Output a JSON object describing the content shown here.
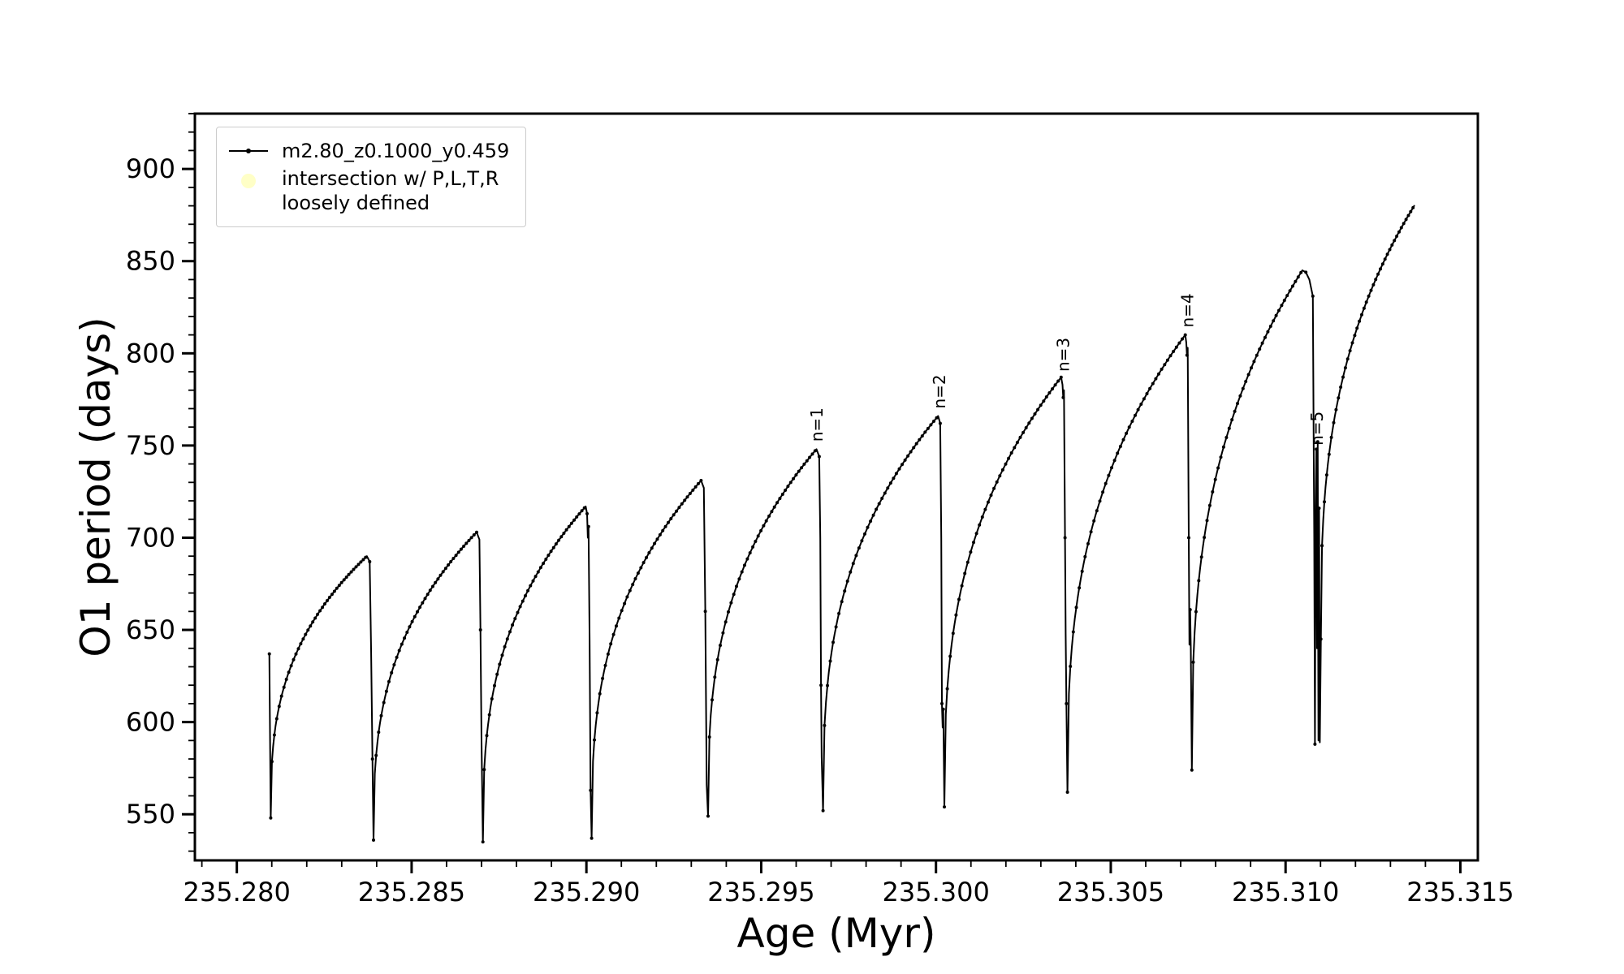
{
  "chart_data": {
    "type": "line",
    "title": "",
    "xlabel": "Age (Myr)",
    "ylabel": "O1 period (days)",
    "xlim": [
      235.2788,
      235.3155
    ],
    "ylim": [
      525,
      930
    ],
    "xticks": [
      235.28,
      235.285,
      235.29,
      235.295,
      235.3,
      235.305,
      235.31,
      235.315
    ],
    "xtick_labels": [
      "235.280",
      "235.285",
      "235.290",
      "235.295",
      "235.300",
      "235.305",
      "235.310",
      "235.315"
    ],
    "yticks": [
      550,
      600,
      650,
      700,
      750,
      800,
      850,
      900
    ],
    "ytick_labels": [
      "550",
      "600",
      "650",
      "700",
      "750",
      "800",
      "850",
      "900"
    ],
    "x_minor_step": 0.001,
    "y_minor_step": 10,
    "grid": false,
    "legend_position": "upper left",
    "legend": [
      {
        "label": "m2.80_z0.1000_y0.459",
        "marker": "line-dot",
        "color": "#000000"
      },
      {
        "label": "intersection w/ P,L,T,R\nloosely defined",
        "marker": "circle",
        "color": "#ffff99"
      }
    ],
    "annotations": [
      {
        "text": "n=1",
        "x": 235.29676,
        "y": 752,
        "rotation": 90
      },
      {
        "text": "n=2",
        "x": 235.30026,
        "y": 770,
        "rotation": 90
      },
      {
        "text": "n=3",
        "x": 235.3038,
        "y": 790,
        "rotation": 90
      },
      {
        "text": "n=4",
        "x": 235.30736,
        "y": 814,
        "rotation": 90
      },
      {
        "text": "n=5",
        "x": 235.31106,
        "y": 750,
        "rotation": 90
      }
    ],
    "series": {
      "name": "m2.80_z0.1000_y0.459",
      "color": "#000000",
      "style": "line with small dot markers",
      "pre_spike": [
        [
          235.28093,
          637
        ],
        [
          235.28095,
          590
        ],
        [
          235.28097,
          548
        ]
      ],
      "cycles": [
        {
          "x0": 235.28097,
          "y0": 548,
          "xp": 235.28372,
          "yp": 690,
          "shape": 0.35,
          "drop": [
            [
              235.2838,
              687
            ],
            [
              235.28384,
              640
            ],
            [
              235.28388,
              580
            ],
            [
              235.28391,
              536
            ]
          ]
        },
        {
          "x0": 235.28391,
          "y0": 536,
          "xp": 235.28686,
          "yp": 703,
          "shape": 0.35,
          "drop": [
            [
              235.28694,
              699
            ],
            [
              235.28697,
              650
            ],
            [
              235.287,
              590
            ],
            [
              235.28704,
              535
            ]
          ]
        },
        {
          "x0": 235.28704,
          "y0": 535,
          "xp": 235.28998,
          "yp": 717,
          "shape": 0.35,
          "drop": [
            [
              235.29002,
              713
            ],
            [
              235.29004,
              700
            ],
            [
              235.29006,
              706
            ],
            [
              235.29009,
              645
            ],
            [
              235.29012,
              563
            ],
            [
              235.29015,
              537
            ]
          ]
        },
        {
          "x0": 235.29015,
          "y0": 537,
          "xp": 235.29328,
          "yp": 731,
          "shape": 0.35,
          "drop": [
            [
              235.29336,
              727
            ],
            [
              235.2934,
              660
            ],
            [
              235.29344,
              566
            ],
            [
              235.29348,
              549
            ]
          ]
        },
        {
          "x0": 235.29348,
          "y0": 549,
          "xp": 235.29658,
          "yp": 748,
          "shape": 0.35,
          "drop": [
            [
              235.29666,
              744
            ],
            [
              235.29669,
              700
            ],
            [
              235.29671,
              620
            ],
            [
              235.29673,
              581
            ],
            [
              235.29677,
              552
            ]
          ]
        },
        {
          "x0": 235.29677,
          "y0": 552,
          "xp": 235.30006,
          "yp": 766,
          "shape": 0.35,
          "drop": [
            [
              235.30012,
              762
            ],
            [
              235.30015,
              700
            ],
            [
              235.30017,
              610
            ],
            [
              235.30019,
              597
            ],
            [
              235.30021,
              607
            ],
            [
              235.30024,
              554
            ]
          ]
        },
        {
          "x0": 235.30024,
          "y0": 554,
          "xp": 235.30358,
          "yp": 787,
          "shape": 0.35,
          "drop": [
            [
              235.30362,
              783
            ],
            [
              235.30364,
              776
            ],
            [
              235.30366,
              780
            ],
            [
              235.30369,
              700
            ],
            [
              235.30371,
              648
            ],
            [
              235.30373,
              610
            ],
            [
              235.30376,
              562
            ]
          ]
        },
        {
          "x0": 235.30376,
          "y0": 562,
          "xp": 235.30713,
          "yp": 810,
          "shape": 0.35,
          "drop": [
            [
              235.30716,
              806
            ],
            [
              235.30718,
              799
            ],
            [
              235.3072,
              803
            ],
            [
              235.30723,
              700
            ],
            [
              235.30725,
              642
            ],
            [
              235.30727,
              661
            ],
            [
              235.30729,
              640
            ],
            [
              235.30732,
              574
            ]
          ]
        },
        {
          "x0": 235.30732,
          "y0": 574,
          "xp": 235.31048,
          "yp": 845,
          "shape": 0.35,
          "drop": [
            [
              235.31058,
              844
            ],
            [
              235.31068,
              840
            ],
            [
              235.31078,
              831
            ],
            [
              235.31082,
              700
            ],
            [
              235.31084,
              588
            ],
            [
              235.31086,
              710
            ],
            [
              235.31088,
              748
            ],
            [
              235.3109,
              640
            ],
            [
              235.31092,
              752
            ],
            [
              235.31094,
              590
            ],
            [
              235.31096,
              716
            ],
            [
              235.31098,
              589
            ],
            [
              235.31101,
              645
            ]
          ]
        },
        {
          "x0": 235.31101,
          "y0": 645,
          "xp": 235.31368,
          "yp": 880,
          "shape": 0.35,
          "drop": []
        }
      ]
    }
  }
}
